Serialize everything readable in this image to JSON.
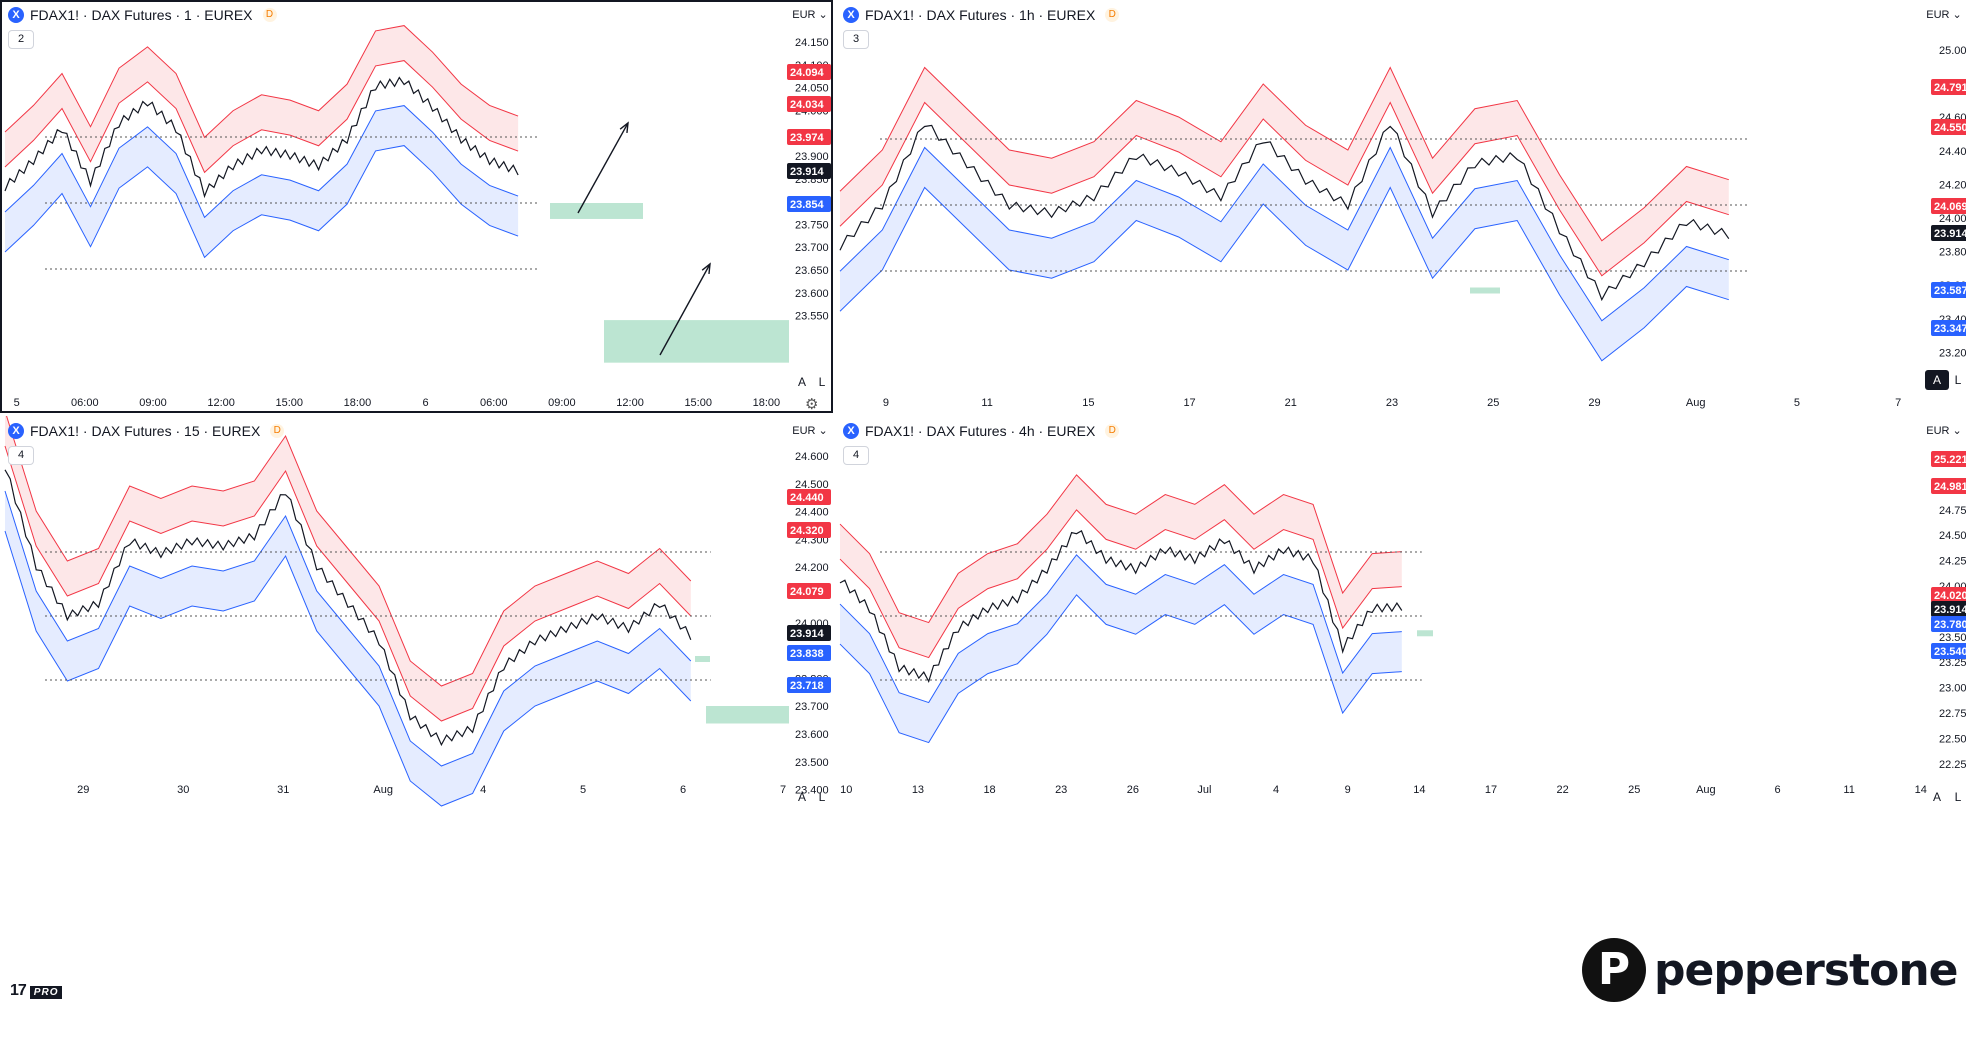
{
  "panels": [
    {
      "id": "p1",
      "title": "FDAX1! · DAX Futures · 1 · EUREX",
      "badge": "D",
      "icon_name": "x-exchange-icon",
      "indicator_count": "2",
      "currency": "EUR",
      "price_ticks": [
        "24.150",
        "24.100",
        "24.050",
        "24.000",
        "23.950",
        "23.900",
        "23.850",
        "23.800",
        "23.750",
        "23.700",
        "23.650",
        "23.600",
        "23.550"
      ],
      "time_ticks": [
        "5",
        "06:00",
        "09:00",
        "12:00",
        "15:00",
        "18:00",
        "6",
        "06:00",
        "09:00",
        "12:00",
        "15:00",
        "18:00"
      ],
      "price_labels": [
        {
          "value": "24.094",
          "color": "#f23645"
        },
        {
          "value": "24.034",
          "color": "#f23645"
        },
        {
          "value": "23.974",
          "color": "#f23645"
        },
        {
          "value": "23.914",
          "color": "#131722"
        },
        {
          "value": "23.854",
          "color": "#2962ff"
        }
      ],
      "footer": [
        "A",
        "L"
      ],
      "chart_data": {
        "type": "line",
        "title": "FDAX1! · DAX Futures · 1 · EUREX",
        "ylim": [
          23.55,
          24.17
        ],
        "last_price": 23.914,
        "series": [
          {
            "name": "",
            "values": [
              23.89,
              23.94,
              24.0,
              23.9,
              24.01,
              24.05,
              24.0,
              23.88,
              23.93,
              23.96,
              23.95,
              23.93,
              23.98,
              24.08,
              24.09,
              24.04,
              23.98,
              23.94,
              23.92
            ]
          }
        ],
        "zones": [
          {
            "from": 23.83,
            "to": 23.86
          },
          {
            "from": 23.56,
            "to": 23.64
          }
        ]
      }
    },
    {
      "id": "p2",
      "title": "FDAX1! · DAX Futures · 1h · EUREX",
      "badge": "D",
      "icon_name": "x-exchange-icon",
      "indicator_count": "3",
      "currency": "EUR",
      "price_ticks": [
        "25.000",
        "24.800",
        "24.600",
        "24.400",
        "24.200",
        "24.000",
        "23.800",
        "23.600",
        "23.400",
        "23.200"
      ],
      "time_ticks": [
        "9",
        "11",
        "15",
        "17",
        "21",
        "23",
        "25",
        "29",
        "Aug",
        "5",
        "7"
      ],
      "price_labels": [
        {
          "value": "24.791",
          "color": "#f23645"
        },
        {
          "value": "24.550",
          "color": "#f23645"
        },
        {
          "value": "24.069",
          "color": "#f23645"
        },
        {
          "value": "23.914",
          "color": "#131722"
        },
        {
          "value": "23.587",
          "color": "#2962ff"
        },
        {
          "value": "23.347",
          "color": "#2962ff"
        }
      ],
      "footer": [
        "A",
        "L"
      ],
      "chart_data": {
        "type": "line",
        "title": "FDAX1! · DAX Futures · 1h · EUREX",
        "ylim": [
          23.1,
          25.1
        ],
        "last_price": 23.914,
        "series": [
          {
            "name": "",
            "values": [
              23.85,
              24.1,
              24.6,
              24.35,
              24.1,
              24.05,
              24.15,
              24.4,
              24.3,
              24.15,
              24.5,
              24.25,
              24.1,
              24.6,
              24.05,
              24.35,
              24.4,
              23.95,
              23.55,
              23.75,
              24.0,
              23.92
            ]
          }
        ],
        "zones": [
          {
            "from": 23.57,
            "to": 23.6
          }
        ]
      }
    },
    {
      "id": "p3",
      "title": "FDAX1! · DAX Futures · 15 · EUREX",
      "badge": "D",
      "icon_name": "x-exchange-icon",
      "indicator_count": "4",
      "currency": "EUR",
      "price_ticks": [
        "24.600",
        "24.500",
        "24.400",
        "24.300",
        "24.200",
        "24.100",
        "24.000",
        "23.900",
        "23.800",
        "23.700",
        "23.600",
        "23.500",
        "23.400"
      ],
      "time_ticks": [
        "29",
        "30",
        "31",
        "Aug",
        "4",
        "5",
        "6",
        "7"
      ],
      "price_labels": [
        {
          "value": "24.440",
          "color": "#f23645"
        },
        {
          "value": "24.320",
          "color": "#f23645"
        },
        {
          "value": "24.079",
          "color": "#f23645"
        },
        {
          "value": "23.914",
          "color": "#131722"
        },
        {
          "value": "23.838",
          "color": "#2962ff"
        },
        {
          "value": "23.718",
          "color": "#2962ff"
        }
      ],
      "footer": [
        "A",
        "L"
      ],
      "chart_data": {
        "type": "line",
        "title": "FDAX1! · DAX Futures · 15 · EUREX",
        "ylim": [
          23.36,
          24.64
        ],
        "last_price": 23.914,
        "series": [
          {
            "name": "",
            "values": [
              24.6,
              24.2,
              24.0,
              24.05,
              24.3,
              24.25,
              24.3,
              24.28,
              24.32,
              24.5,
              24.2,
              24.05,
              23.9,
              23.6,
              23.5,
              23.55,
              23.8,
              23.9,
              23.95,
              24.0,
              23.95,
              24.05,
              23.92
            ]
          }
        ],
        "zones": [
          {
            "from": 23.82,
            "to": 23.84
          },
          {
            "from": 23.57,
            "to": 23.64
          }
        ]
      }
    },
    {
      "id": "p4",
      "title": "FDAX1! · DAX Futures · 4h · EUREX",
      "badge": "D",
      "icon_name": "x-exchange-icon",
      "indicator_count": "4",
      "currency": "EUR",
      "price_ticks": [
        "25.250",
        "25.000",
        "24.750",
        "24.500",
        "24.250",
        "24.000",
        "23.750",
        "23.500",
        "23.250",
        "23.000",
        "22.750",
        "22.500",
        "22.250"
      ],
      "time_ticks": [
        "10",
        "13",
        "18",
        "23",
        "26",
        "Jul",
        "4",
        "9",
        "14",
        "17",
        "22",
        "25",
        "Aug",
        "6",
        "11",
        "14"
      ],
      "price_labels": [
        {
          "value": "25.221",
          "color": "#f23645"
        },
        {
          "value": "24.981",
          "color": "#f23645"
        },
        {
          "value": "24.020",
          "color": "#f23645"
        },
        {
          "value": "23.914",
          "color": "#131722"
        },
        {
          "value": "23.780",
          "color": "#2962ff"
        },
        {
          "value": "23.540",
          "color": "#2962ff"
        }
      ],
      "footer": [
        "A",
        "L"
      ],
      "chart_data": {
        "type": "line",
        "title": "FDAX1! · DAX Futures · 4h · EUREX",
        "ylim": [
          22.2,
          25.45
        ],
        "last_price": 23.914,
        "series": [
          {
            "name": "",
            "values": [
              24.2,
              23.9,
              23.3,
              23.2,
              23.7,
              23.9,
              24.0,
              24.3,
              24.7,
              24.4,
              24.3,
              24.5,
              24.4,
              24.6,
              24.3,
              24.5,
              24.4,
              23.5,
              23.9,
              23.92
            ]
          }
        ],
        "zones": [
          {
            "from": 23.62,
            "to": 23.68
          }
        ]
      }
    }
  ],
  "logo": {
    "tv_text": "17",
    "tv_badge": "PRO"
  },
  "brand": {
    "mark": "P",
    "word": "pepperstone"
  },
  "colors": {
    "up_band": "#f23645",
    "down_band": "#2962ff",
    "zone": "#8fd3b4",
    "candle": "#131722"
  }
}
